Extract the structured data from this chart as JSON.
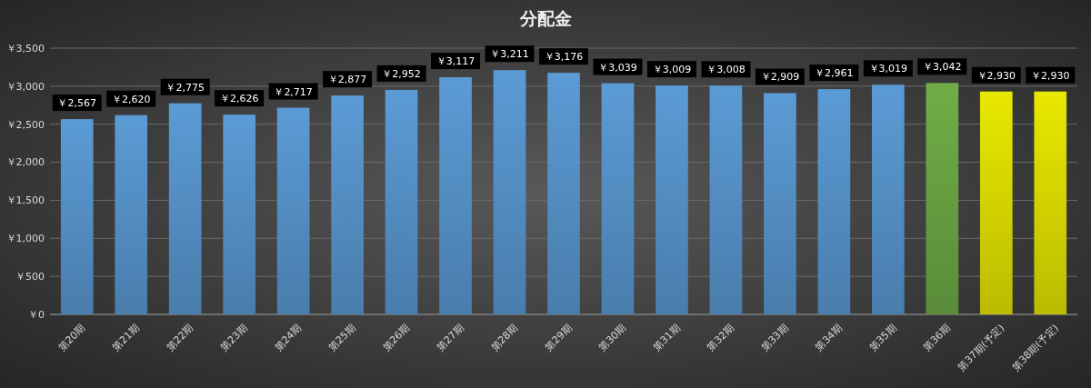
{
  "chart_data": {
    "type": "bar",
    "title": "分配金",
    "categories": [
      "第20期",
      "第21期",
      "第22期",
      "第23期",
      "第24期",
      "第25期",
      "第26期",
      "第27期",
      "第28期",
      "第29期",
      "第30期",
      "第31期",
      "第32期",
      "第33期",
      "第34期",
      "第35期",
      "第36期",
      "第37期(予定)",
      "第38期(予定)"
    ],
    "values": [
      2567,
      2620,
      2775,
      2626,
      2717,
      2877,
      2952,
      3117,
      3211,
      3176,
      3039,
      3009,
      3008,
      2909,
      2961,
      3019,
      3042,
      2930,
      2930
    ],
    "value_labels": [
      "￥2,567",
      "￥2,620",
      "￥2,775",
      "￥2,626",
      "￥2,717",
      "￥2,877",
      "￥2,952",
      "￥3,117",
      "￥3,211",
      "￥3,176",
      "￥3,039",
      "￥3,009",
      "￥3,008",
      "￥2,909",
      "￥2,961",
      "￥3,019",
      "￥3,042",
      "￥2,930",
      "￥2,930"
    ],
    "colors": [
      "#5b9bd5",
      "#5b9bd5",
      "#5b9bd5",
      "#5b9bd5",
      "#5b9bd5",
      "#5b9bd5",
      "#5b9bd5",
      "#5b9bd5",
      "#5b9bd5",
      "#5b9bd5",
      "#5b9bd5",
      "#5b9bd5",
      "#5b9bd5",
      "#5b9bd5",
      "#5b9bd5",
      "#5b9bd5",
      "#70ad47",
      "#e8e800",
      "#e8e800"
    ],
    "ylim": [
      0,
      3500
    ],
    "yticks": [
      {
        "value": 0,
        "label": "￥0"
      },
      {
        "value": 500,
        "label": "￥500"
      },
      {
        "value": 1000,
        "label": "￥1,000"
      },
      {
        "value": 1500,
        "label": "￥1,500"
      },
      {
        "value": 2000,
        "label": "￥2,000"
      },
      {
        "value": 2500,
        "label": "￥2,500"
      },
      {
        "value": 3000,
        "label": "￥3,000"
      },
      {
        "value": 3500,
        "label": "￥3,500"
      }
    ],
    "grid": "y"
  }
}
